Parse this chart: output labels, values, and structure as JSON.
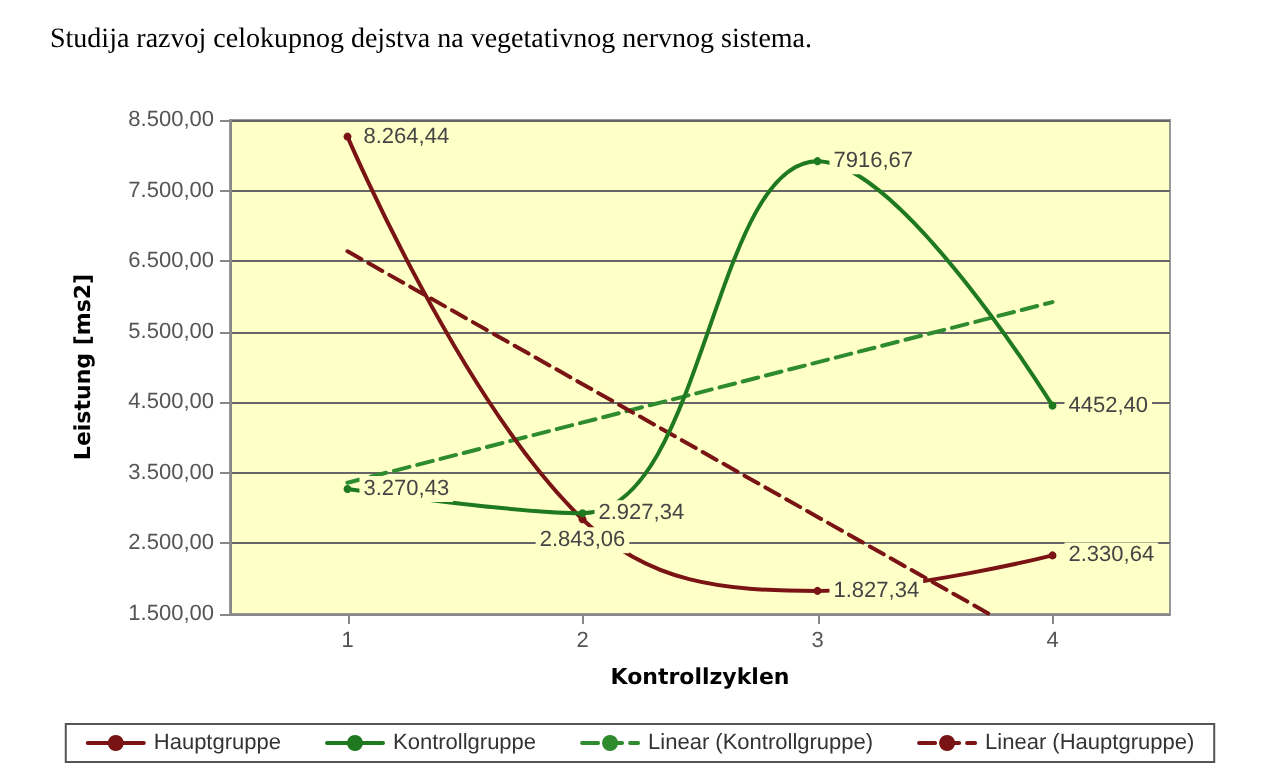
{
  "chart_data": {
    "type": "line",
    "title": "Studija razvoj celokupnog dejstva na vegetativnog nervnog sistema.",
    "xlabel": "Kontrollzyklen",
    "ylabel": "Leistung [ms2]",
    "xlim": [
      0.5,
      4.5
    ],
    "xticks": [
      1,
      2,
      3,
      4
    ],
    "ylim": [
      1500,
      8500
    ],
    "yticks": [
      {
        "value": 1500,
        "label": "1.500,00"
      },
      {
        "value": 2500,
        "label": "2.500,00"
      },
      {
        "value": 3500,
        "label": "3.500,00"
      },
      {
        "value": 4500,
        "label": "4.500,00"
      },
      {
        "value": 5500,
        "label": "5.500,00"
      },
      {
        "value": 6500,
        "label": "6.500,00"
      },
      {
        "value": 7500,
        "label": "7.500,00"
      },
      {
        "value": 8500,
        "label": "8.500,00"
      }
    ],
    "grid": "y",
    "legend": "bottom",
    "marker": "circle",
    "series": [
      {
        "name": "Hauptgruppe",
        "color": "#7a1414",
        "x": [
          1,
          2,
          3,
          4
        ],
        "values": [
          8264.44,
          2843.06,
          1827.34,
          2330.64
        ],
        "value_labels": [
          "8.264,44",
          "2.843,06",
          "1.827,34",
          "2.330,64"
        ]
      },
      {
        "name": "Kontrollgruppe",
        "color": "#1f7a1f",
        "x": [
          1,
          2,
          3,
          4
        ],
        "values": [
          3270.43,
          2927.34,
          7916.67,
          4452.4
        ],
        "value_labels": [
          "3.270,43",
          "2.927,34",
          "7916,67",
          "4452,40"
        ]
      },
      {
        "name": "Linear (Kontrollgruppe)",
        "color": "#2e8b2e",
        "line_style": "dashed",
        "marker": "none",
        "x": [
          1,
          4
        ],
        "values": [
          3360,
          5920
        ]
      },
      {
        "name": "Linear (Hauptgruppe)",
        "color": "#7a1414",
        "line_style": "dashed",
        "marker": "none",
        "x": [
          1,
          3.731
        ],
        "values": [
          6640,
          1500
        ]
      }
    ]
  }
}
